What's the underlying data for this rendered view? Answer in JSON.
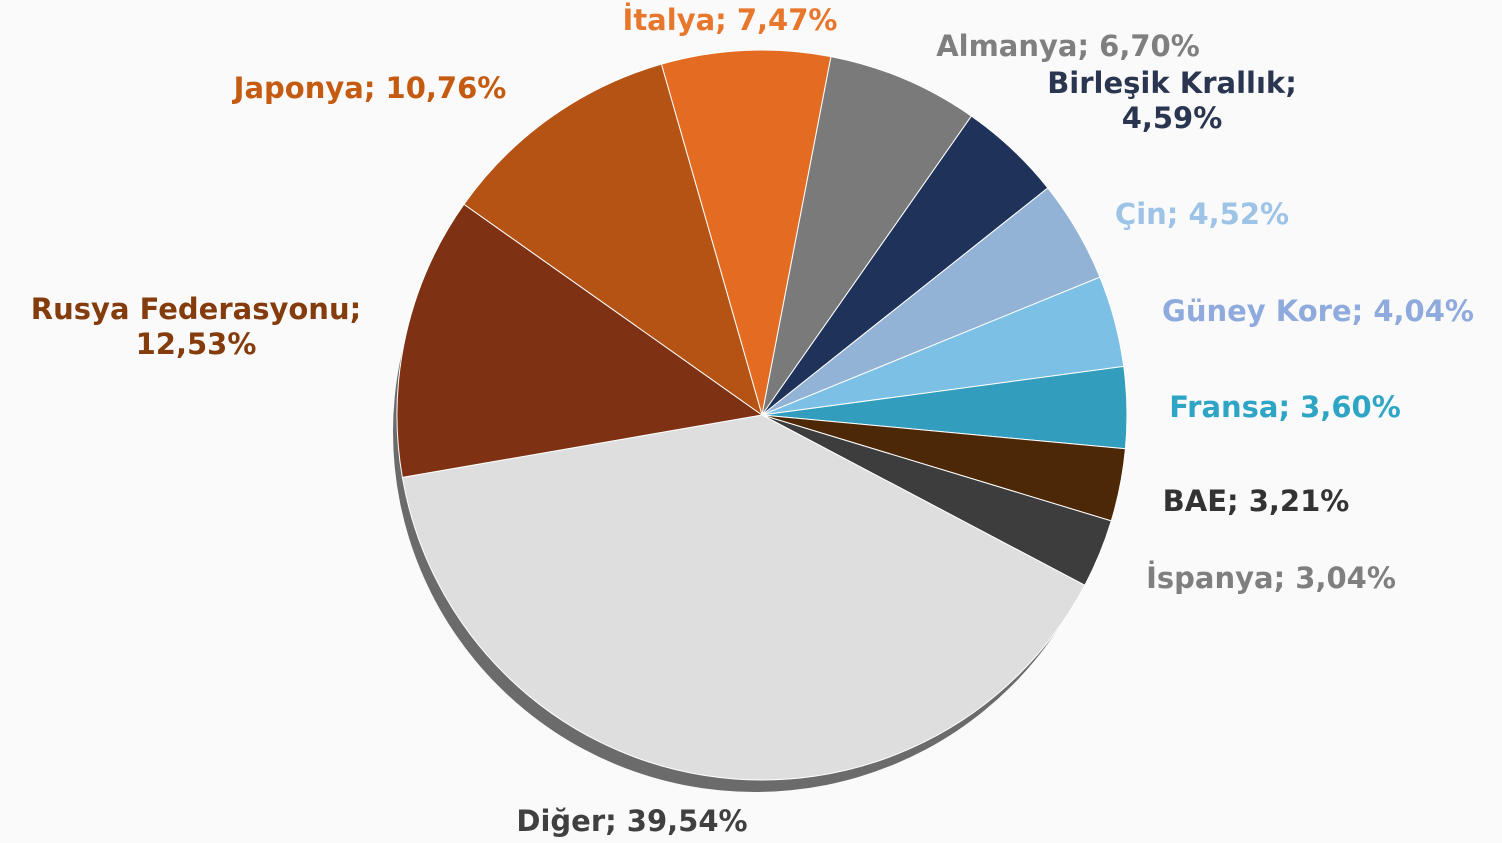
{
  "chart_data": {
    "type": "pie",
    "values": [
      7.47,
      6.7,
      4.59,
      4.52,
      4.04,
      3.6,
      3.21,
      3.04,
      39.54,
      12.53,
      10.76
    ],
    "value_labels": [
      "İtalya; 7,47%",
      "Almanya; 6,70%",
      "Birleşik Krallık;\n4,59%",
      "Çin; 4,52%",
      "Güney Kore; 4,04%",
      "Fransa; 3,60%",
      "BAE; 3,21%",
      "İspanya; 3,04%",
      "Diğer; 39,54%",
      "Rusya Federasyonu;\n12,53%",
      "Japonya; 10,76%"
    ],
    "colors": [
      "#e46c22",
      "#7a7a7a",
      "#1f3259",
      "#92b3d6",
      "#7dc0e6",
      "#339dbd",
      "#4d2806",
      "#3d3d3d",
      "#dedede",
      "#7f3113",
      "#b55315"
    ],
    "label_colors": [
      "#e8772e",
      "#7f7f7f",
      "#2a3650",
      "#9dc3e6",
      "#8faadc",
      "#2ea5c5",
      "#333333",
      "#7f7f7f",
      "#404040",
      "#843c0c",
      "#c55a11"
    ]
  }
}
